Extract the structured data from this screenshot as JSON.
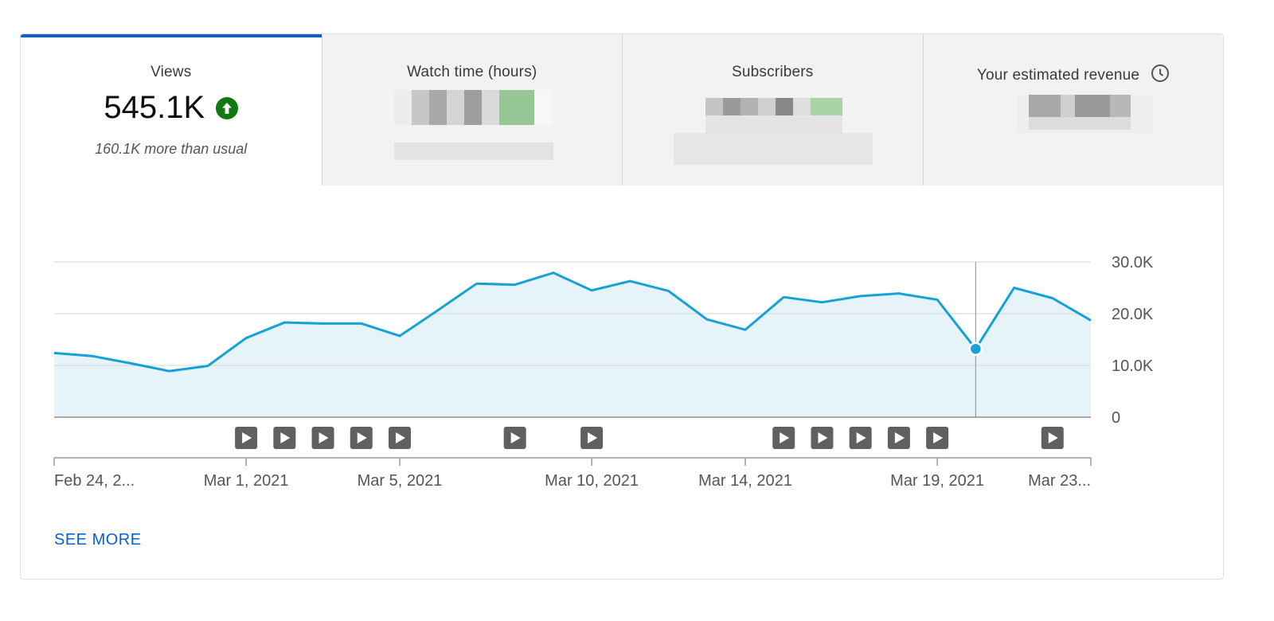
{
  "tabs": [
    {
      "title": "Views",
      "value": "545.1K",
      "sub": "160.1K more than usual",
      "icon": "arrow-up-circle-icon",
      "active": true
    },
    {
      "title": "Watch time (hours)",
      "value": "",
      "sub": "",
      "active": false
    },
    {
      "title": "Subscribers",
      "value": "",
      "sub": "",
      "active": false
    },
    {
      "title": "Your estimated revenue",
      "value": "",
      "sub": "",
      "icon": "clock-icon",
      "active": false
    }
  ],
  "see_more_label": "SEE MORE",
  "colors": {
    "accent": "#065fd4",
    "line": "#16a2d6",
    "area": "#e6f4fa",
    "positive": "#0f7a0f"
  },
  "chart_data": {
    "type": "area",
    "series": [
      {
        "values": [
          12400,
          11800,
          10400,
          8900,
          9900,
          15300,
          18300,
          18100,
          18100,
          15700,
          20700,
          25800,
          25600,
          27900,
          24500,
          26300,
          24400,
          18900,
          16900,
          23200,
          22200,
          23400,
          23900,
          22700,
          13200,
          25000,
          23000,
          18700
        ]
      }
    ],
    "x_ticks": [
      "Feb 24, 2...",
      "Mar 1, 2021",
      "Mar 5, 2021",
      "Mar 10, 2021",
      "Mar 14, 2021",
      "Mar 19, 2021",
      "Mar 23..."
    ],
    "x_tick_index": [
      0,
      5,
      9,
      14,
      18,
      23,
      27
    ],
    "y_ticks": [
      "30.0K",
      "20.0K",
      "10.0K",
      "0"
    ],
    "y_tick_values": [
      30000,
      20000,
      10000,
      0
    ],
    "ylim": [
      0,
      30000
    ],
    "highlight_index": 24,
    "video_markers_index": [
      5,
      6,
      7,
      8,
      9,
      12,
      14,
      19,
      20,
      21,
      22,
      23,
      26
    ]
  }
}
